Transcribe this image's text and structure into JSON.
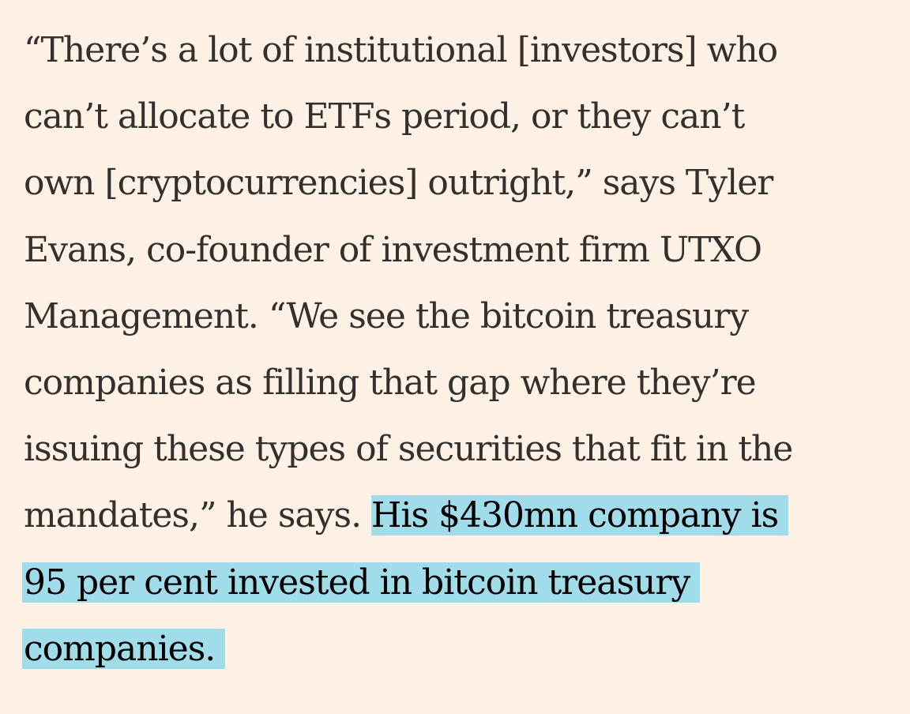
{
  "article": {
    "plain_lines": [
      "“There’s a lot of institutional [investors] who",
      "can’t allocate to ETFs period, or they can’t",
      "own [cryptocurrencies] outright,” says Tyler",
      "Evans, co-founder of investment firm UTXO",
      "Management. “We see the bitcoin treasury",
      "companies as filling that gap where they’re",
      "issuing these types of securities that fit in the"
    ],
    "mixed_line_plain": "mandates,” he says. ",
    "highlighted_lines": [
      "His $430mn company is",
      "95 per cent invested in bitcoin treasury",
      "companies."
    ],
    "highlight_color": "#a1dcea",
    "background_color": "#fff1e5",
    "text_color": "#33302e"
  }
}
